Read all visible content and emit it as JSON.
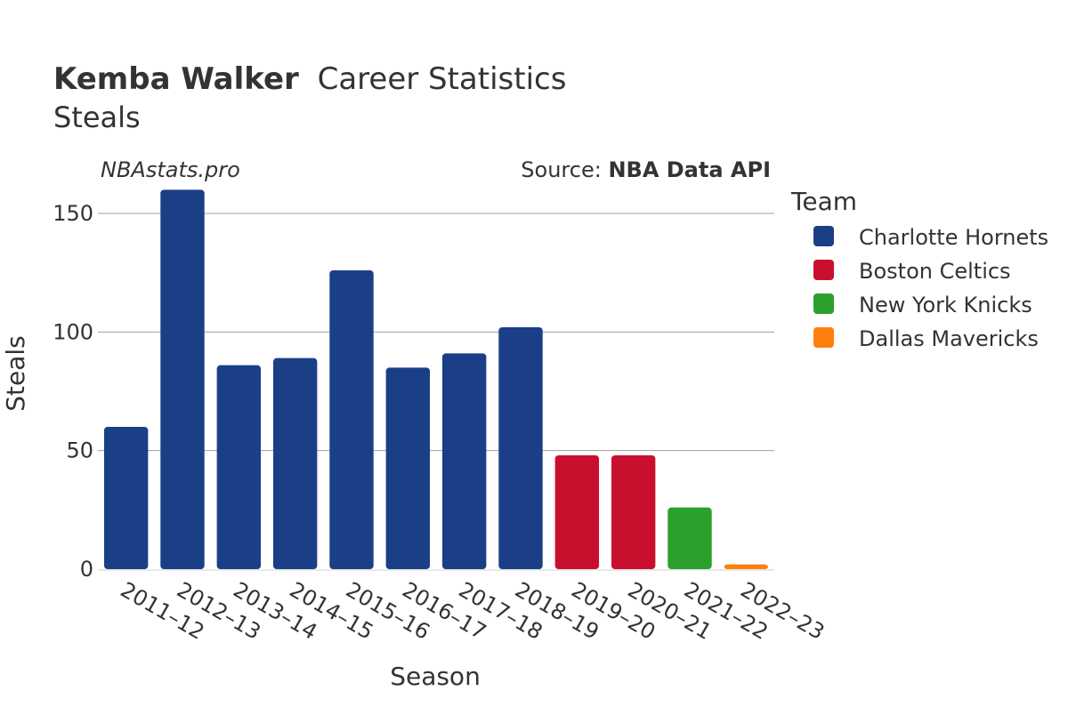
{
  "title": {
    "player": "Kemba Walker",
    "rest": "Career Statistics",
    "subtitle": "Steals"
  },
  "watermark": "NBAstats.pro",
  "source": {
    "prefix": "Source: ",
    "name": "NBA Data API"
  },
  "legend": {
    "title": "Team",
    "items": [
      {
        "label": "Charlotte Hornets",
        "color": "#1b3f87"
      },
      {
        "label": "Boston Celtics",
        "color": "#c8102e"
      },
      {
        "label": "New York Knicks",
        "color": "#2ca02c"
      },
      {
        "label": "Dallas Mavericks",
        "color": "#ff7f0e"
      }
    ]
  },
  "chart_data": {
    "type": "bar",
    "title": "Kemba Walker Career Statistics — Steals",
    "xlabel": "Season",
    "ylabel": "Steals",
    "ylim": [
      0,
      165
    ],
    "yticks": [
      0,
      50,
      100,
      150
    ],
    "grid": true,
    "legend_position": "right",
    "categories": [
      "2011–12",
      "2012–13",
      "2013–14",
      "2014–15",
      "2015–16",
      "2016–17",
      "2017–18",
      "2018–19",
      "2019–20",
      "2020–21",
      "2021–22",
      "2022–23"
    ],
    "values": [
      60,
      160,
      86,
      89,
      126,
      85,
      91,
      102,
      48,
      48,
      26,
      2
    ],
    "teams": [
      "Charlotte Hornets",
      "Charlotte Hornets",
      "Charlotte Hornets",
      "Charlotte Hornets",
      "Charlotte Hornets",
      "Charlotte Hornets",
      "Charlotte Hornets",
      "Charlotte Hornets",
      "Boston Celtics",
      "Boston Celtics",
      "New York Knicks",
      "Dallas Mavericks"
    ]
  }
}
